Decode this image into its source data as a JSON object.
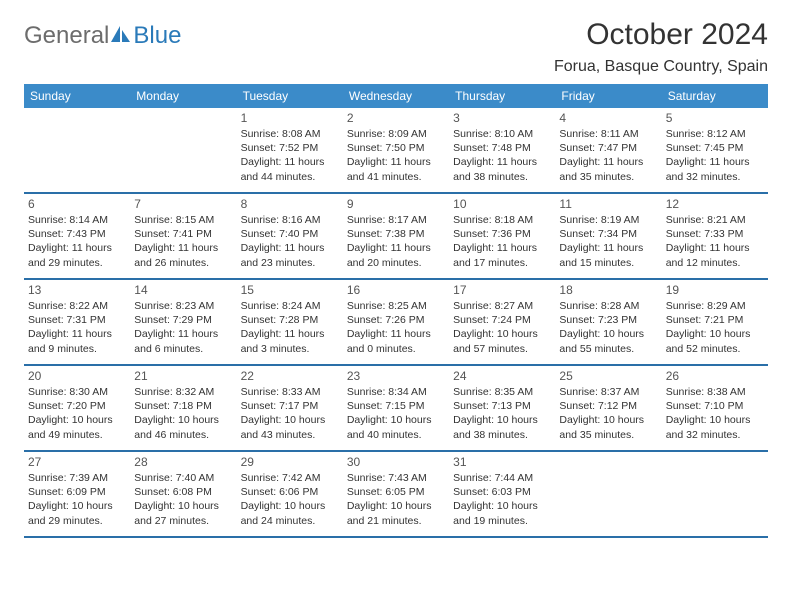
{
  "logo": {
    "text1": "General",
    "text2": "Blue"
  },
  "title": "October 2024",
  "location": "Forua, Basque Country, Spain",
  "colors": {
    "header_bg": "#3b8bc9",
    "header_text": "#ffffff",
    "border": "#2a6fa8",
    "body_text": "#333333",
    "logo_gray": "#6c6c6c",
    "logo_blue": "#2a7ab9"
  },
  "days_of_week": [
    "Sunday",
    "Monday",
    "Tuesday",
    "Wednesday",
    "Thursday",
    "Friday",
    "Saturday"
  ],
  "weeks": [
    [
      {
        "empty": true
      },
      {
        "empty": true
      },
      {
        "num": "1",
        "sunrise": "Sunrise: 8:08 AM",
        "sunset": "Sunset: 7:52 PM",
        "daylight": "Daylight: 11 hours and 44 minutes."
      },
      {
        "num": "2",
        "sunrise": "Sunrise: 8:09 AM",
        "sunset": "Sunset: 7:50 PM",
        "daylight": "Daylight: 11 hours and 41 minutes."
      },
      {
        "num": "3",
        "sunrise": "Sunrise: 8:10 AM",
        "sunset": "Sunset: 7:48 PM",
        "daylight": "Daylight: 11 hours and 38 minutes."
      },
      {
        "num": "4",
        "sunrise": "Sunrise: 8:11 AM",
        "sunset": "Sunset: 7:47 PM",
        "daylight": "Daylight: 11 hours and 35 minutes."
      },
      {
        "num": "5",
        "sunrise": "Sunrise: 8:12 AM",
        "sunset": "Sunset: 7:45 PM",
        "daylight": "Daylight: 11 hours and 32 minutes."
      }
    ],
    [
      {
        "num": "6",
        "sunrise": "Sunrise: 8:14 AM",
        "sunset": "Sunset: 7:43 PM",
        "daylight": "Daylight: 11 hours and 29 minutes."
      },
      {
        "num": "7",
        "sunrise": "Sunrise: 8:15 AM",
        "sunset": "Sunset: 7:41 PM",
        "daylight": "Daylight: 11 hours and 26 minutes."
      },
      {
        "num": "8",
        "sunrise": "Sunrise: 8:16 AM",
        "sunset": "Sunset: 7:40 PM",
        "daylight": "Daylight: 11 hours and 23 minutes."
      },
      {
        "num": "9",
        "sunrise": "Sunrise: 8:17 AM",
        "sunset": "Sunset: 7:38 PM",
        "daylight": "Daylight: 11 hours and 20 minutes."
      },
      {
        "num": "10",
        "sunrise": "Sunrise: 8:18 AM",
        "sunset": "Sunset: 7:36 PM",
        "daylight": "Daylight: 11 hours and 17 minutes."
      },
      {
        "num": "11",
        "sunrise": "Sunrise: 8:19 AM",
        "sunset": "Sunset: 7:34 PM",
        "daylight": "Daylight: 11 hours and 15 minutes."
      },
      {
        "num": "12",
        "sunrise": "Sunrise: 8:21 AM",
        "sunset": "Sunset: 7:33 PM",
        "daylight": "Daylight: 11 hours and 12 minutes."
      }
    ],
    [
      {
        "num": "13",
        "sunrise": "Sunrise: 8:22 AM",
        "sunset": "Sunset: 7:31 PM",
        "daylight": "Daylight: 11 hours and 9 minutes."
      },
      {
        "num": "14",
        "sunrise": "Sunrise: 8:23 AM",
        "sunset": "Sunset: 7:29 PM",
        "daylight": "Daylight: 11 hours and 6 minutes."
      },
      {
        "num": "15",
        "sunrise": "Sunrise: 8:24 AM",
        "sunset": "Sunset: 7:28 PM",
        "daylight": "Daylight: 11 hours and 3 minutes."
      },
      {
        "num": "16",
        "sunrise": "Sunrise: 8:25 AM",
        "sunset": "Sunset: 7:26 PM",
        "daylight": "Daylight: 11 hours and 0 minutes."
      },
      {
        "num": "17",
        "sunrise": "Sunrise: 8:27 AM",
        "sunset": "Sunset: 7:24 PM",
        "daylight": "Daylight: 10 hours and 57 minutes."
      },
      {
        "num": "18",
        "sunrise": "Sunrise: 8:28 AM",
        "sunset": "Sunset: 7:23 PM",
        "daylight": "Daylight: 10 hours and 55 minutes."
      },
      {
        "num": "19",
        "sunrise": "Sunrise: 8:29 AM",
        "sunset": "Sunset: 7:21 PM",
        "daylight": "Daylight: 10 hours and 52 minutes."
      }
    ],
    [
      {
        "num": "20",
        "sunrise": "Sunrise: 8:30 AM",
        "sunset": "Sunset: 7:20 PM",
        "daylight": "Daylight: 10 hours and 49 minutes."
      },
      {
        "num": "21",
        "sunrise": "Sunrise: 8:32 AM",
        "sunset": "Sunset: 7:18 PM",
        "daylight": "Daylight: 10 hours and 46 minutes."
      },
      {
        "num": "22",
        "sunrise": "Sunrise: 8:33 AM",
        "sunset": "Sunset: 7:17 PM",
        "daylight": "Daylight: 10 hours and 43 minutes."
      },
      {
        "num": "23",
        "sunrise": "Sunrise: 8:34 AM",
        "sunset": "Sunset: 7:15 PM",
        "daylight": "Daylight: 10 hours and 40 minutes."
      },
      {
        "num": "24",
        "sunrise": "Sunrise: 8:35 AM",
        "sunset": "Sunset: 7:13 PM",
        "daylight": "Daylight: 10 hours and 38 minutes."
      },
      {
        "num": "25",
        "sunrise": "Sunrise: 8:37 AM",
        "sunset": "Sunset: 7:12 PM",
        "daylight": "Daylight: 10 hours and 35 minutes."
      },
      {
        "num": "26",
        "sunrise": "Sunrise: 8:38 AM",
        "sunset": "Sunset: 7:10 PM",
        "daylight": "Daylight: 10 hours and 32 minutes."
      }
    ],
    [
      {
        "num": "27",
        "sunrise": "Sunrise: 7:39 AM",
        "sunset": "Sunset: 6:09 PM",
        "daylight": "Daylight: 10 hours and 29 minutes."
      },
      {
        "num": "28",
        "sunrise": "Sunrise: 7:40 AM",
        "sunset": "Sunset: 6:08 PM",
        "daylight": "Daylight: 10 hours and 27 minutes."
      },
      {
        "num": "29",
        "sunrise": "Sunrise: 7:42 AM",
        "sunset": "Sunset: 6:06 PM",
        "daylight": "Daylight: 10 hours and 24 minutes."
      },
      {
        "num": "30",
        "sunrise": "Sunrise: 7:43 AM",
        "sunset": "Sunset: 6:05 PM",
        "daylight": "Daylight: 10 hours and 21 minutes."
      },
      {
        "num": "31",
        "sunrise": "Sunrise: 7:44 AM",
        "sunset": "Sunset: 6:03 PM",
        "daylight": "Daylight: 10 hours and 19 minutes."
      },
      {
        "empty": true
      },
      {
        "empty": true
      }
    ]
  ]
}
